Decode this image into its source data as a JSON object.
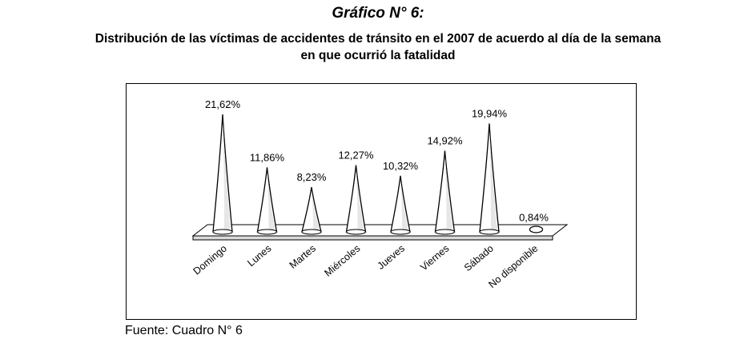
{
  "title": "Gráfico N° 6:",
  "subtitle_line1": "Distribución de las víctimas de accidentes de tránsito en el 2007 de acuerdo al día de la semana",
  "subtitle_line2": "en que ocurrió la fatalidad",
  "source": "Fuente: Cuadro N° 6",
  "chart_data": {
    "type": "bar",
    "style": "3d-cone",
    "categories": [
      "Domingo",
      "Lunes",
      "Martes",
      "Miércoles",
      "Jueves",
      "Viernes",
      "Sábado",
      "No disponible"
    ],
    "values": [
      21.62,
      11.86,
      8.23,
      12.27,
      10.32,
      14.92,
      19.94,
      0.84
    ],
    "data_labels": [
      "21,62%",
      "11,86%",
      "8,23%",
      "12,27%",
      "10,32%",
      "14,92%",
      "19,94%",
      "0,84%"
    ],
    "unit": "%",
    "grid": false,
    "legend": "none"
  }
}
